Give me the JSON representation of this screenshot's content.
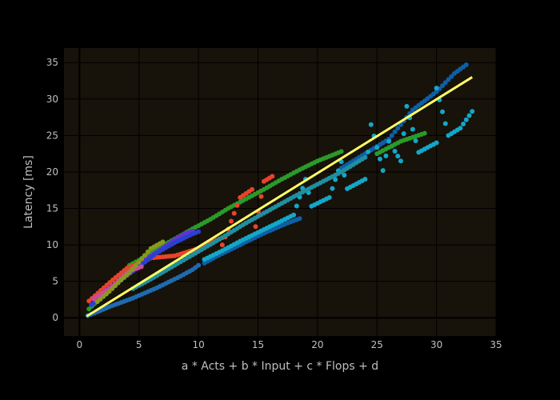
{
  "colors": {
    "page_bg": "#000000",
    "plot_bg": "#17120a",
    "grid": "#000000",
    "zero_line": "#000000",
    "text": "#bfbfbf",
    "fit_line": "#ffff66"
  },
  "chart_data": {
    "type": "scatter",
    "title": "",
    "xlabel": "a * Acts + b * Input + c * Flops + d",
    "ylabel": "Latency [ms]",
    "xlim": [
      -1.3,
      35
    ],
    "ylim": [
      -2.5,
      37
    ],
    "x_ticks": [
      0,
      5,
      10,
      15,
      20,
      25,
      30,
      35
    ],
    "y_ticks": [
      0,
      5,
      10,
      15,
      20,
      25,
      30,
      35
    ],
    "grid": true,
    "legend": "none",
    "fit_line": {
      "color": "#ffff66",
      "points": [
        [
          0.6,
          0.2
        ],
        [
          33,
          33
        ]
      ]
    },
    "series": [
      {
        "color": "#1f6bb0",
        "points": [
          [
            0.7,
            0.3
          ],
          [
            1.5,
            0.8
          ],
          [
            2.5,
            1.5
          ],
          [
            3.5,
            2.1
          ],
          [
            4.5,
            2.7
          ],
          [
            5.5,
            3.4
          ],
          [
            6.5,
            4.1
          ],
          [
            7.5,
            4.9
          ],
          [
            8.5,
            5.7
          ],
          [
            9.5,
            6.6
          ],
          [
            10,
            7.2
          ]
        ]
      },
      {
        "color": "#0d5fa8",
        "points": [
          [
            10.5,
            7.5
          ],
          [
            11.5,
            8.4
          ],
          [
            12.5,
            9.2
          ],
          [
            13.5,
            10.0
          ],
          [
            14.5,
            10.8
          ],
          [
            15.5,
            11.6
          ],
          [
            16.5,
            12.3
          ],
          [
            17.5,
            13.0
          ],
          [
            18.5,
            13.6
          ],
          [
            22,
            20.5
          ],
          [
            24,
            22.5
          ],
          [
            26,
            24.5
          ],
          [
            28,
            28.5
          ],
          [
            30,
            31.0
          ],
          [
            31.5,
            33.5
          ],
          [
            32.5,
            34.7
          ]
        ]
      },
      {
        "color": "#13a7c8",
        "points": [
          [
            10.5,
            8.0
          ],
          [
            12,
            9.2
          ],
          [
            13.5,
            10.5
          ],
          [
            15,
            11.7
          ],
          [
            16.5,
            12.9
          ],
          [
            18,
            14.1
          ],
          [
            19.5,
            15.3
          ],
          [
            21,
            16.5
          ],
          [
            22.5,
            17.7
          ],
          [
            24,
            19.0
          ],
          [
            25.5,
            20.2
          ],
          [
            27,
            21.5
          ],
          [
            28.5,
            22.7
          ],
          [
            30,
            24.0
          ],
          [
            31,
            25.0
          ],
          [
            32,
            26.0
          ],
          [
            33,
            28.3
          ],
          [
            24.5,
            26.5
          ],
          [
            27.5,
            29.0
          ],
          [
            30,
            31.5
          ],
          [
            26,
            24.2
          ],
          [
            22,
            21.4
          ],
          [
            19,
            19.0
          ]
        ]
      },
      {
        "color": "#2a9a2a",
        "points": [
          [
            0.8,
            1.2
          ],
          [
            1.5,
            2.3
          ],
          [
            2.5,
            3.8
          ],
          [
            3.5,
            5.5
          ],
          [
            4.2,
            7.2
          ],
          [
            5,
            7.9
          ],
          [
            6.5,
            9.5
          ],
          [
            8,
            10.8
          ],
          [
            9.5,
            12.2
          ],
          [
            11,
            13.5
          ],
          [
            12.5,
            15.0
          ],
          [
            14,
            16.3
          ],
          [
            15.5,
            17.6
          ],
          [
            17,
            19.0
          ],
          [
            18.5,
            20.3
          ],
          [
            20,
            21.5
          ],
          [
            22,
            22.8
          ],
          [
            25,
            22.5
          ],
          [
            27,
            24.2
          ],
          [
            29,
            25.3
          ]
        ]
      },
      {
        "color": "#e8442a",
        "points": [
          [
            0.8,
            2.3
          ],
          [
            2.8,
            5.2
          ],
          [
            4,
            6.8
          ],
          [
            6,
            8.2
          ],
          [
            8,
            8.5
          ],
          [
            10,
            9.5
          ],
          [
            12,
            11.0
          ],
          [
            13.5,
            16.5
          ],
          [
            14.5,
            17.6
          ],
          [
            15.5,
            18.7
          ],
          [
            16.2,
            19.4
          ],
          [
            14.8,
            12.5
          ],
          [
            12,
            10.0
          ]
        ]
      },
      {
        "color": "#6633cc",
        "points": [
          [
            2,
            3.5
          ],
          [
            3.5,
            5.2
          ],
          [
            5,
            7.4
          ],
          [
            6.5,
            9.0
          ],
          [
            7.8,
            10.5
          ],
          [
            8.8,
            11.5
          ],
          [
            9.5,
            11.9
          ]
        ]
      },
      {
        "color": "#2b3fd1",
        "points": [
          [
            1,
            1.8
          ],
          [
            2,
            3.0
          ],
          [
            3,
            4.5
          ],
          [
            4,
            5.8
          ],
          [
            5,
            7.0
          ],
          [
            6.5,
            8.9
          ],
          [
            8,
            10.3
          ],
          [
            9.5,
            11.5
          ],
          [
            10,
            11.8
          ]
        ]
      },
      {
        "color": "#c84b9e",
        "points": [
          [
            1.2,
            2.6
          ],
          [
            2.5,
            4.0
          ],
          [
            4.2,
            6.4
          ],
          [
            5.2,
            7.0
          ]
        ]
      },
      {
        "color": "#8a9a1e",
        "points": [
          [
            1.5,
            2.2
          ],
          [
            2.5,
            3.6
          ],
          [
            3.5,
            5.2
          ],
          [
            4.2,
            6.2
          ],
          [
            6,
            9.5
          ],
          [
            7,
            10.4
          ]
        ]
      },
      {
        "color": "#1f8fa0",
        "points": [
          [
            4.5,
            4.0
          ],
          [
            6,
            5.3
          ],
          [
            8,
            7.2
          ],
          [
            10,
            9.1
          ],
          [
            12,
            11.0
          ],
          [
            14,
            13.0
          ],
          [
            16,
            14.8
          ],
          [
            18,
            16.6
          ],
          [
            20,
            18.3
          ],
          [
            22,
            20.0
          ],
          [
            24,
            22.0
          ]
        ]
      }
    ]
  }
}
